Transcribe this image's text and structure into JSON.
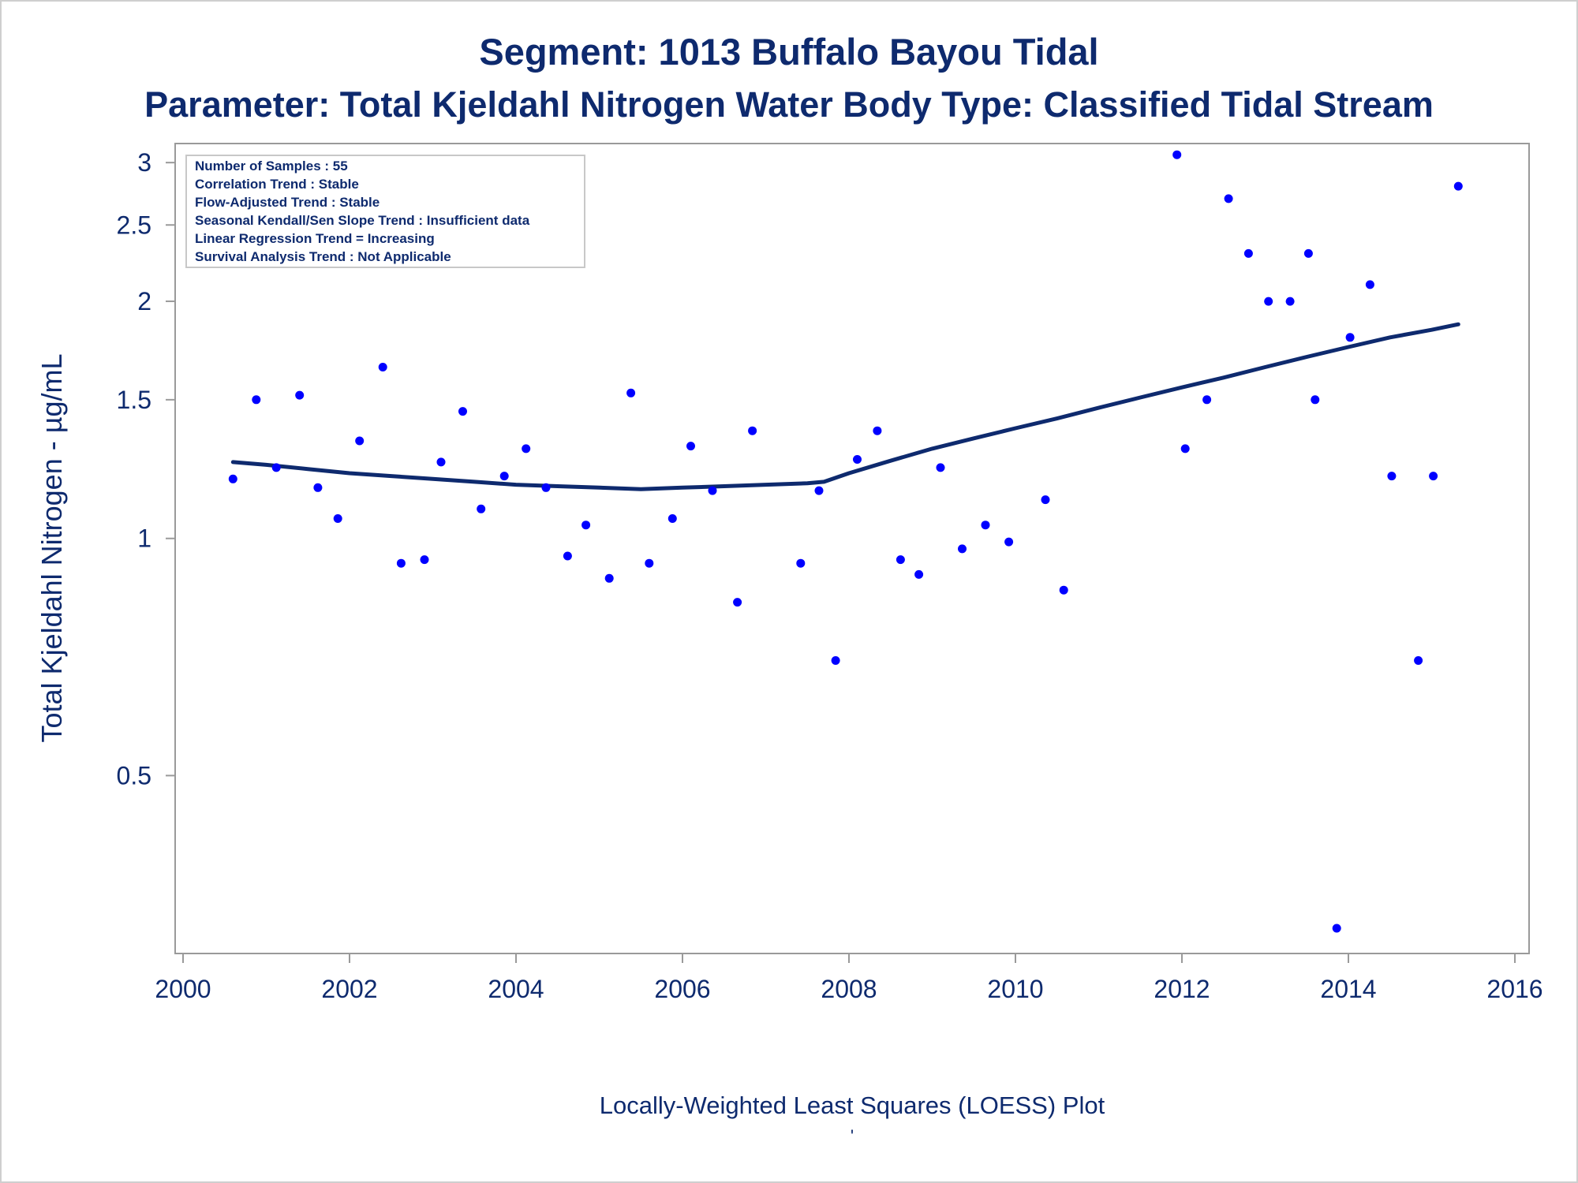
{
  "colors": {
    "text": "#0e2a6e",
    "points": "#0000ff",
    "loess_line": "#0e2a6e",
    "frame": "#9a9a9a",
    "info_border": "#c8c8c8"
  },
  "chart_data": {
    "type": "scatter",
    "title": "Segment: 1013  Buffalo Bayou Tidal",
    "subtitle": "Parameter: Total Kjeldahl Nitrogen   Water Body Type: Classified Tidal Stream",
    "xlabel": "Locally-Weighted Least Squares (LOESS) Plot",
    "ylabel": "Total Kjeldahl Nitrogen -  µg/mL",
    "footnote": "'",
    "x_scale": "linear",
    "y_scale": "log",
    "xlim": [
      2000,
      2016
    ],
    "ylim": [
      0.3,
      3.15
    ],
    "x_ticks": [
      2000,
      2002,
      2004,
      2006,
      2008,
      2010,
      2012,
      2014,
      2016
    ],
    "x_tick_labels": [
      "2000",
      "2002",
      "2004",
      "2006",
      "2008",
      "2010",
      "2012",
      "2014",
      "2016"
    ],
    "y_ticks": [
      0.5,
      1,
      1.5,
      2,
      2.5,
      3
    ],
    "y_tick_labels": [
      "0.5",
      "1",
      "1.5",
      "2",
      "2.5",
      "3"
    ],
    "grid": false,
    "legend": "none",
    "info_box": {
      "placement": "top-left",
      "lines": [
        "Number of Samples : 55",
        "Correlation Trend : Stable",
        "Flow-Adjusted Trend : Stable",
        "Seasonal Kendall/Sen Slope Trend : Insufficient data",
        "Linear Regression Trend = Increasing",
        "Survival Analysis Trend : Not Applicable"
      ]
    },
    "series": [
      {
        "kind": "scatter",
        "points": [
          [
            2000.6,
            1.19
          ],
          [
            2000.88,
            1.5
          ],
          [
            2001.12,
            1.23
          ],
          [
            2001.4,
            1.52
          ],
          [
            2001.62,
            1.16
          ],
          [
            2001.86,
            1.06
          ],
          [
            2002.12,
            1.33
          ],
          [
            2002.4,
            1.65
          ],
          [
            2002.62,
            0.93
          ],
          [
            2002.9,
            0.94
          ],
          [
            2003.1,
            1.25
          ],
          [
            2003.36,
            1.45
          ],
          [
            2003.58,
            1.09
          ],
          [
            2003.86,
            1.2
          ],
          [
            2004.12,
            1.3
          ],
          [
            2004.36,
            1.16
          ],
          [
            2004.62,
            0.95
          ],
          [
            2004.84,
            1.04
          ],
          [
            2005.12,
            0.89
          ],
          [
            2005.38,
            1.53
          ],
          [
            2005.6,
            0.93
          ],
          [
            2005.88,
            1.06
          ],
          [
            2006.1,
            1.31
          ],
          [
            2006.36,
            1.15
          ],
          [
            2006.66,
            0.83
          ],
          [
            2006.84,
            1.37
          ],
          [
            2007.42,
            0.93
          ],
          [
            2007.64,
            1.15
          ],
          [
            2007.84,
            0.7
          ],
          [
            2008.1,
            1.26
          ],
          [
            2008.34,
            1.37
          ],
          [
            2008.62,
            0.94
          ],
          [
            2008.84,
            0.9
          ],
          [
            2009.1,
            1.23
          ],
          [
            2009.36,
            0.97
          ],
          [
            2009.64,
            1.04
          ],
          [
            2009.92,
            0.99
          ],
          [
            2010.36,
            1.12
          ],
          [
            2010.58,
            0.86
          ],
          [
            2011.94,
            3.07
          ],
          [
            2012.04,
            1.3
          ],
          [
            2012.3,
            1.5
          ],
          [
            2012.56,
            2.7
          ],
          [
            2012.8,
            2.3
          ],
          [
            2013.04,
            2.0
          ],
          [
            2013.3,
            2.0
          ],
          [
            2013.52,
            2.3
          ],
          [
            2013.6,
            1.5
          ],
          [
            2013.86,
            0.32
          ],
          [
            2014.02,
            1.8
          ],
          [
            2014.26,
            2.1
          ],
          [
            2014.52,
            1.2
          ],
          [
            2014.84,
            0.7
          ],
          [
            2015.02,
            1.2
          ],
          [
            2015.32,
            2.8
          ]
        ]
      },
      {
        "kind": "line",
        "name": "LOESS",
        "points": [
          [
            2000.6,
            1.25
          ],
          [
            2001.0,
            1.24
          ],
          [
            2001.5,
            1.225
          ],
          [
            2002.0,
            1.21
          ],
          [
            2002.5,
            1.2
          ],
          [
            2003.0,
            1.19
          ],
          [
            2003.5,
            1.18
          ],
          [
            2004.0,
            1.17
          ],
          [
            2004.5,
            1.165
          ],
          [
            2005.0,
            1.16
          ],
          [
            2005.5,
            1.155
          ],
          [
            2006.0,
            1.16
          ],
          [
            2006.5,
            1.165
          ],
          [
            2007.0,
            1.17
          ],
          [
            2007.5,
            1.175
          ],
          [
            2007.7,
            1.18
          ],
          [
            2008.0,
            1.21
          ],
          [
            2008.5,
            1.255
          ],
          [
            2009.0,
            1.3
          ],
          [
            2009.5,
            1.34
          ],
          [
            2010.0,
            1.38
          ],
          [
            2010.5,
            1.42
          ],
          [
            2011.0,
            1.465
          ],
          [
            2011.5,
            1.51
          ],
          [
            2012.0,
            1.555
          ],
          [
            2012.5,
            1.6
          ],
          [
            2013.0,
            1.65
          ],
          [
            2013.5,
            1.7
          ],
          [
            2014.0,
            1.75
          ],
          [
            2014.5,
            1.8
          ],
          [
            2015.0,
            1.84
          ],
          [
            2015.32,
            1.87
          ]
        ]
      }
    ]
  }
}
